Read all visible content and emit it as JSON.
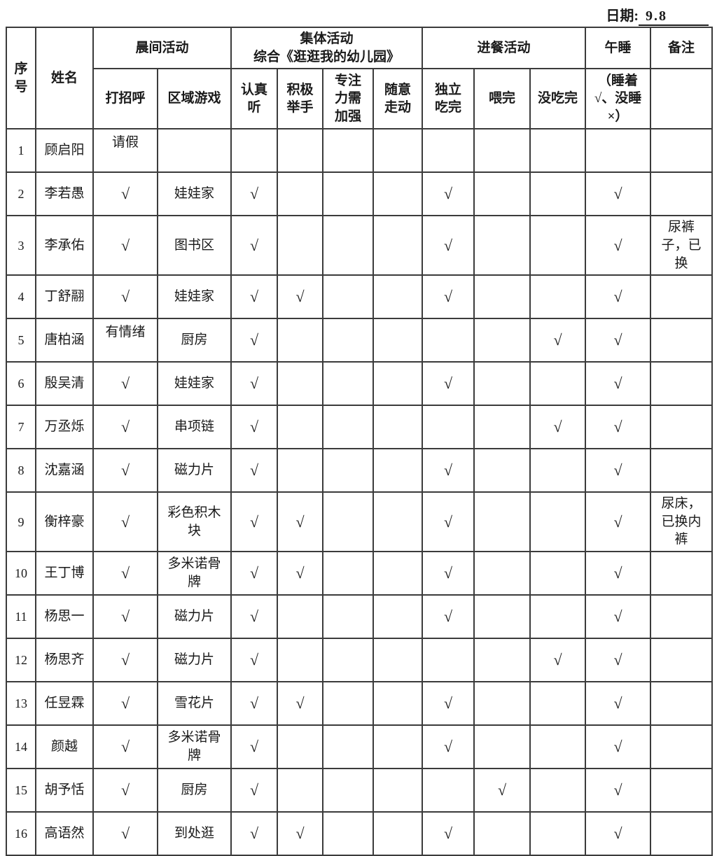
{
  "date": {
    "label": "日期:",
    "value": "9.8"
  },
  "table": {
    "header": {
      "serial": "序\n号",
      "name": "姓名",
      "groups": {
        "morning": "晨间活动",
        "group_activity": "集体活动\n综合《逛逛我的幼儿园》",
        "meal": "进餐活动",
        "nap": "午睡",
        "remark": "备注"
      },
      "sub": {
        "greet": "打招呼",
        "area_game": "区域游戏",
        "listen": "认真\n听",
        "raise_hand": "积极\n举手",
        "focus": "专注\n力需\n加强",
        "wander": "随意\n走动",
        "eat_self": "独立\n吃完",
        "fed": "喂完",
        "not_finish": "没吃完",
        "nap_note": "（睡着\n√、没睡\n×）"
      }
    },
    "check_glyph": "√",
    "rows": [
      {
        "no": "1",
        "name": "顾启阳",
        "greet": "请假",
        "area": "",
        "listen": "",
        "raise": "",
        "focus": "",
        "wander": "",
        "eat_self": "",
        "fed": "",
        "not_finish": "",
        "nap": "",
        "remark": ""
      },
      {
        "no": "2",
        "name": "李若愚",
        "greet": "√",
        "area": "娃娃家",
        "listen": "√",
        "raise": "",
        "focus": "",
        "wander": "",
        "eat_self": "√",
        "fed": "",
        "not_finish": "",
        "nap": "√",
        "remark": ""
      },
      {
        "no": "3",
        "name": "李承佑",
        "greet": "√",
        "area": "图书区",
        "listen": "√",
        "raise": "",
        "focus": "",
        "wander": "",
        "eat_self": "√",
        "fed": "",
        "not_finish": "",
        "nap": "√",
        "remark": "尿裤子，已换"
      },
      {
        "no": "4",
        "name": "丁舒翮",
        "greet": "√",
        "area": "娃娃家",
        "listen": "√",
        "raise": "√",
        "focus": "",
        "wander": "",
        "eat_self": "√",
        "fed": "",
        "not_finish": "",
        "nap": "√",
        "remark": ""
      },
      {
        "no": "5",
        "name": "唐柏涵",
        "greet": "有情绪",
        "area": "厨房",
        "listen": "√",
        "raise": "",
        "focus": "",
        "wander": "",
        "eat_self": "",
        "fed": "",
        "not_finish": "√",
        "nap": "√",
        "remark": ""
      },
      {
        "no": "6",
        "name": "殷吴清",
        "greet": "√",
        "area": "娃娃家",
        "listen": "√",
        "raise": "",
        "focus": "",
        "wander": "",
        "eat_self": "√",
        "fed": "",
        "not_finish": "",
        "nap": "√",
        "remark": ""
      },
      {
        "no": "7",
        "name": "万丞烁",
        "greet": "√",
        "area": "串项链",
        "listen": "√",
        "raise": "",
        "focus": "",
        "wander": "",
        "eat_self": "",
        "fed": "",
        "not_finish": "√",
        "nap": "√",
        "remark": ""
      },
      {
        "no": "8",
        "name": "沈嘉涵",
        "greet": "√",
        "area": "磁力片",
        "listen": "√",
        "raise": "",
        "focus": "",
        "wander": "",
        "eat_self": "√",
        "fed": "",
        "not_finish": "",
        "nap": "√",
        "remark": ""
      },
      {
        "no": "9",
        "name": "衡梓豪",
        "greet": "√",
        "area": "彩色积木块",
        "listen": "√",
        "raise": "√",
        "focus": "",
        "wander": "",
        "eat_self": "√",
        "fed": "",
        "not_finish": "",
        "nap": "√",
        "remark": "尿床，已换内裤"
      },
      {
        "no": "10",
        "name": "王丁博",
        "greet": "√",
        "area": "多米诺骨牌",
        "listen": "√",
        "raise": "√",
        "focus": "",
        "wander": "",
        "eat_self": "√",
        "fed": "",
        "not_finish": "",
        "nap": "√",
        "remark": ""
      },
      {
        "no": "11",
        "name": "杨思一",
        "greet": "√",
        "area": "磁力片",
        "listen": "√",
        "raise": "",
        "focus": "",
        "wander": "",
        "eat_self": "√",
        "fed": "",
        "not_finish": "",
        "nap": "√",
        "remark": ""
      },
      {
        "no": "12",
        "name": "杨思齐",
        "greet": "√",
        "area": "磁力片",
        "listen": "√",
        "raise": "",
        "focus": "",
        "wander": "",
        "eat_self": "",
        "fed": "",
        "not_finish": "√",
        "nap": "√",
        "remark": ""
      },
      {
        "no": "13",
        "name": "任昱霖",
        "greet": "√",
        "area": "雪花片",
        "listen": "√",
        "raise": "√",
        "focus": "",
        "wander": "",
        "eat_self": "√",
        "fed": "",
        "not_finish": "",
        "nap": "√",
        "remark": ""
      },
      {
        "no": "14",
        "name": "颜越",
        "greet": "√",
        "area": "多米诺骨牌",
        "listen": "√",
        "raise": "",
        "focus": "",
        "wander": "",
        "eat_self": "√",
        "fed": "",
        "not_finish": "",
        "nap": "√",
        "remark": ""
      },
      {
        "no": "15",
        "name": "胡予恬",
        "greet": "√",
        "area": "厨房",
        "listen": "√",
        "raise": "",
        "focus": "",
        "wander": "",
        "eat_self": "",
        "fed": "√",
        "not_finish": "",
        "nap": "√",
        "remark": ""
      },
      {
        "no": "16",
        "name": "高语然",
        "greet": "√",
        "area": "到处逛",
        "listen": "√",
        "raise": "√",
        "focus": "",
        "wander": "",
        "eat_self": "√",
        "fed": "",
        "not_finish": "",
        "nap": "√",
        "remark": ""
      }
    ]
  }
}
